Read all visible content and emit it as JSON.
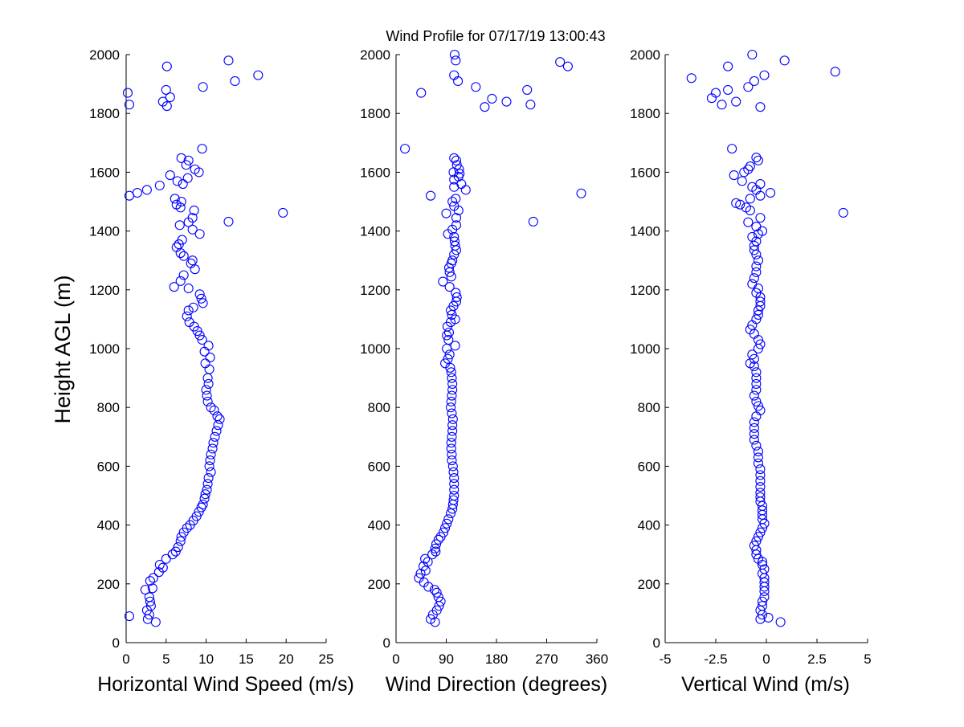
{
  "figure_title": "Wind Profile for  07/17/19 13:00:43",
  "marker_color": "#0000ff",
  "chart_data": [
    {
      "type": "scatter",
      "xlabel": "Horizontal Wind Speed (m/s)",
      "ylabel": "Height AGL (m)",
      "xlim": [
        0,
        25
      ],
      "ylim": [
        0,
        2000
      ],
      "xticks": [
        0,
        5,
        10,
        15,
        20,
        25
      ],
      "yticks": [
        0,
        200,
        400,
        600,
        800,
        1000,
        1200,
        1400,
        1600,
        1800,
        2000
      ],
      "grid": false,
      "points": [
        [
          0.4,
          90
        ],
        [
          3.7,
          70
        ],
        [
          2.7,
          80
        ],
        [
          2.9,
          95
        ],
        [
          2.6,
          110
        ],
        [
          3.1,
          125
        ],
        [
          3.0,
          140
        ],
        [
          2.9,
          155
        ],
        [
          2.4,
          180
        ],
        [
          3.3,
          185
        ],
        [
          3.0,
          210
        ],
        [
          3.4,
          220
        ],
        [
          4.1,
          240
        ],
        [
          4.6,
          255
        ],
        [
          4.2,
          265
        ],
        [
          5.0,
          285
        ],
        [
          5.8,
          300
        ],
        [
          6.2,
          310
        ],
        [
          6.5,
          325
        ],
        [
          6.8,
          345
        ],
        [
          6.9,
          360
        ],
        [
          7.2,
          375
        ],
        [
          7.6,
          390
        ],
        [
          8.0,
          400
        ],
        [
          8.4,
          415
        ],
        [
          8.8,
          430
        ],
        [
          9.1,
          445
        ],
        [
          9.4,
          460
        ],
        [
          9.6,
          470
        ],
        [
          9.8,
          490
        ],
        [
          9.9,
          505
        ],
        [
          10.1,
          520
        ],
        [
          10.2,
          540
        ],
        [
          10.3,
          560
        ],
        [
          10.6,
          580
        ],
        [
          10.4,
          600
        ],
        [
          10.5,
          620
        ],
        [
          10.6,
          640
        ],
        [
          10.8,
          660
        ],
        [
          10.9,
          680
        ],
        [
          11.1,
          700
        ],
        [
          11.3,
          720
        ],
        [
          11.5,
          740
        ],
        [
          11.7,
          760
        ],
        [
          11.4,
          770
        ],
        [
          11.0,
          790
        ],
        [
          10.6,
          800
        ],
        [
          10.2,
          820
        ],
        [
          10.1,
          840
        ],
        [
          10.0,
          860
        ],
        [
          10.3,
          880
        ],
        [
          10.2,
          900
        ],
        [
          10.4,
          930
        ],
        [
          9.9,
          950
        ],
        [
          10.5,
          970
        ],
        [
          9.8,
          990
        ],
        [
          10.3,
          1010
        ],
        [
          9.5,
          1030
        ],
        [
          9.2,
          1045
        ],
        [
          8.9,
          1060
        ],
        [
          8.5,
          1075
        ],
        [
          7.9,
          1090
        ],
        [
          7.6,
          1110
        ],
        [
          7.8,
          1130
        ],
        [
          8.4,
          1140
        ],
        [
          9.6,
          1155
        ],
        [
          9.4,
          1170
        ],
        [
          9.2,
          1185
        ],
        [
          7.8,
          1205
        ],
        [
          6.0,
          1210
        ],
        [
          6.8,
          1230
        ],
        [
          7.2,
          1250
        ],
        [
          8.6,
          1270
        ],
        [
          8.1,
          1290
        ],
        [
          8.3,
          1300
        ],
        [
          7.2,
          1315
        ],
        [
          6.8,
          1325
        ],
        [
          6.3,
          1345
        ],
        [
          6.6,
          1355
        ],
        [
          7.0,
          1370
        ],
        [
          9.2,
          1390
        ],
        [
          8.3,
          1405
        ],
        [
          6.7,
          1420
        ],
        [
          7.8,
          1430
        ],
        [
          12.8,
          1432
        ],
        [
          8.3,
          1445
        ],
        [
          19.6,
          1462
        ],
        [
          8.5,
          1470
        ],
        [
          6.8,
          1480
        ],
        [
          6.3,
          1490
        ],
        [
          6.9,
          1500
        ],
        [
          6.1,
          1510
        ],
        [
          0.4,
          1520
        ],
        [
          1.4,
          1530
        ],
        [
          2.6,
          1540
        ],
        [
          4.2,
          1555
        ],
        [
          7.1,
          1560
        ],
        [
          6.4,
          1570
        ],
        [
          7.7,
          1580
        ],
        [
          5.5,
          1590
        ],
        [
          9.1,
          1600
        ],
        [
          8.6,
          1610
        ],
        [
          7.5,
          1625
        ],
        [
          7.8,
          1640
        ],
        [
          6.9,
          1648
        ],
        [
          9.5,
          1680
        ],
        [
          5.1,
          1825
        ],
        [
          0.4,
          1830
        ],
        [
          4.6,
          1840
        ],
        [
          5.5,
          1855
        ],
        [
          0.2,
          1870
        ],
        [
          5.0,
          1880
        ],
        [
          9.6,
          1890
        ],
        [
          13.6,
          1910
        ],
        [
          16.5,
          1930
        ],
        [
          5.1,
          1960
        ],
        [
          12.8,
          1980
        ]
      ]
    },
    {
      "type": "scatter",
      "xlabel": "Wind Direction (degrees)",
      "xlim": [
        0,
        360
      ],
      "ylim": [
        0,
        2000
      ],
      "xticks": [
        0,
        90,
        180,
        270,
        360
      ],
      "yticks": [
        0,
        200,
        400,
        600,
        800,
        1000,
        1200,
        1400,
        1600,
        1800,
        2000
      ],
      "grid": false,
      "points": [
        [
          70,
          70
        ],
        [
          62,
          80
        ],
        [
          66,
          95
        ],
        [
          73,
          110
        ],
        [
          77,
          125
        ],
        [
          80,
          140
        ],
        [
          76,
          155
        ],
        [
          73,
          170
        ],
        [
          69,
          180
        ],
        [
          58,
          190
        ],
        [
          50,
          205
        ],
        [
          41,
          220
        ],
        [
          44,
          235
        ],
        [
          53,
          245
        ],
        [
          49,
          260
        ],
        [
          57,
          275
        ],
        [
          52,
          285
        ],
        [
          65,
          300
        ],
        [
          71,
          310
        ],
        [
          70,
          320
        ],
        [
          72,
          335
        ],
        [
          76,
          350
        ],
        [
          80,
          360
        ],
        [
          85,
          375
        ],
        [
          88,
          390
        ],
        [
          91,
          405
        ],
        [
          94,
          420
        ],
        [
          98,
          440
        ],
        [
          101,
          455
        ],
        [
          102,
          470
        ],
        [
          103,
          485
        ],
        [
          104,
          500
        ],
        [
          104,
          520
        ],
        [
          104,
          540
        ],
        [
          104,
          560
        ],
        [
          103,
          580
        ],
        [
          102,
          600
        ],
        [
          100,
          620
        ],
        [
          100,
          640
        ],
        [
          99,
          660
        ],
        [
          99,
          680
        ],
        [
          100,
          700
        ],
        [
          101,
          720
        ],
        [
          101,
          740
        ],
        [
          102,
          760
        ],
        [
          100,
          780
        ],
        [
          98,
          800
        ],
        [
          99,
          820
        ],
        [
          100,
          840
        ],
        [
          101,
          860
        ],
        [
          101,
          880
        ],
        [
          100,
          900
        ],
        [
          99,
          920
        ],
        [
          97,
          935
        ],
        [
          88,
          950
        ],
        [
          93,
          965
        ],
        [
          96,
          980
        ],
        [
          91,
          1000
        ],
        [
          106,
          1010
        ],
        [
          94,
          1030
        ],
        [
          91,
          1045
        ],
        [
          95,
          1055
        ],
        [
          92,
          1075
        ],
        [
          98,
          1090
        ],
        [
          106,
          1100
        ],
        [
          100,
          1115
        ],
        [
          98,
          1130
        ],
        [
          103,
          1145
        ],
        [
          108,
          1160
        ],
        [
          109,
          1175
        ],
        [
          107,
          1190
        ],
        [
          96,
          1210
        ],
        [
          84,
          1228
        ],
        [
          99,
          1245
        ],
        [
          96,
          1260
        ],
        [
          95,
          1275
        ],
        [
          99,
          1290
        ],
        [
          101,
          1300
        ],
        [
          104,
          1320
        ],
        [
          108,
          1335
        ],
        [
          106,
          1350
        ],
        [
          105,
          1365
        ],
        [
          104,
          1380
        ],
        [
          93,
          1390
        ],
        [
          101,
          1405
        ],
        [
          108,
          1420
        ],
        [
          246,
          1432
        ],
        [
          108,
          1445
        ],
        [
          90,
          1460
        ],
        [
          112,
          1470
        ],
        [
          104,
          1485
        ],
        [
          101,
          1500
        ],
        [
          107,
          1510
        ],
        [
          62,
          1520
        ],
        [
          332,
          1528
        ],
        [
          125,
          1540
        ],
        [
          104,
          1550
        ],
        [
          117,
          1560
        ],
        [
          104,
          1575
        ],
        [
          112,
          1585
        ],
        [
          114,
          1595
        ],
        [
          103,
          1600
        ],
        [
          113,
          1610
        ],
        [
          109,
          1625
        ],
        [
          108,
          1640
        ],
        [
          104,
          1648
        ],
        [
          16,
          1680
        ],
        [
          159,
          1822
        ],
        [
          241,
          1830
        ],
        [
          45,
          1870
        ],
        [
          198,
          1840
        ],
        [
          172,
          1850
        ],
        [
          235,
          1880
        ],
        [
          143,
          1890
        ],
        [
          111,
          1910
        ],
        [
          104,
          1930
        ],
        [
          308,
          1960
        ],
        [
          294,
          1975
        ],
        [
          107,
          1980
        ],
        [
          105,
          2000
        ]
      ]
    },
    {
      "type": "scatter",
      "xlabel": "Vertical Wind (m/s)",
      "xlim": [
        -5,
        5
      ],
      "ylim": [
        0,
        2000
      ],
      "xticks": [
        -5,
        -2.5,
        0,
        2.5,
        5
      ],
      "xtick_labels": [
        "-5",
        "-2.5",
        "0",
        "2.5",
        "5"
      ],
      "yticks": [
        0,
        200,
        400,
        600,
        800,
        1000,
        1200,
        1400,
        1600,
        1800,
        2000
      ],
      "grid": false,
      "points": [
        [
          0.7,
          70
        ],
        [
          0.1,
          85
        ],
        [
          -0.3,
          80
        ],
        [
          -0.2,
          95
        ],
        [
          -0.3,
          110
        ],
        [
          -0.2,
          125
        ],
        [
          -0.2,
          140
        ],
        [
          -0.1,
          155
        ],
        [
          -0.1,
          175
        ],
        [
          -0.1,
          190
        ],
        [
          -0.1,
          205
        ],
        [
          -0.1,
          220
        ],
        [
          -0.2,
          235
        ],
        [
          -0.1,
          250
        ],
        [
          -0.2,
          265
        ],
        [
          -0.2,
          275
        ],
        [
          -0.4,
          285
        ],
        [
          -0.5,
          300
        ],
        [
          -0.5,
          315
        ],
        [
          -0.6,
          330
        ],
        [
          -0.5,
          345
        ],
        [
          -0.4,
          360
        ],
        [
          -0.3,
          375
        ],
        [
          -0.2,
          390
        ],
        [
          -0.1,
          405
        ],
        [
          -0.2,
          420
        ],
        [
          -0.2,
          435
        ],
        [
          -0.2,
          450
        ],
        [
          -0.2,
          465
        ],
        [
          -0.3,
          480
        ],
        [
          -0.3,
          495
        ],
        [
          -0.3,
          510
        ],
        [
          -0.3,
          530
        ],
        [
          -0.3,
          550
        ],
        [
          -0.3,
          570
        ],
        [
          -0.3,
          590
        ],
        [
          -0.4,
          610
        ],
        [
          -0.4,
          630
        ],
        [
          -0.4,
          650
        ],
        [
          -0.5,
          670
        ],
        [
          -0.6,
          690
        ],
        [
          -0.6,
          710
        ],
        [
          -0.6,
          730
        ],
        [
          -0.6,
          750
        ],
        [
          -0.5,
          770
        ],
        [
          -0.3,
          790
        ],
        [
          -0.4,
          805
        ],
        [
          -0.5,
          820
        ],
        [
          -0.6,
          840
        ],
        [
          -0.5,
          860
        ],
        [
          -0.5,
          880
        ],
        [
          -0.5,
          900
        ],
        [
          -0.5,
          920
        ],
        [
          -0.6,
          940
        ],
        [
          -0.8,
          950
        ],
        [
          -0.6,
          965
        ],
        [
          -0.7,
          980
        ],
        [
          -0.4,
          1000
        ],
        [
          -0.3,
          1015
        ],
        [
          -0.4,
          1030
        ],
        [
          -0.6,
          1050
        ],
        [
          -0.8,
          1065
        ],
        [
          -0.7,
          1080
        ],
        [
          -0.5,
          1100
        ],
        [
          -0.4,
          1115
        ],
        [
          -0.4,
          1130
        ],
        [
          -0.3,
          1145
        ],
        [
          -0.3,
          1160
        ],
        [
          -0.3,
          1175
        ],
        [
          -0.5,
          1190
        ],
        [
          -0.4,
          1205
        ],
        [
          -0.7,
          1220
        ],
        [
          -0.6,
          1240
        ],
        [
          -0.5,
          1260
        ],
        [
          -0.5,
          1280
        ],
        [
          -0.4,
          1300
        ],
        [
          -0.5,
          1320
        ],
        [
          -0.6,
          1335
        ],
        [
          -0.6,
          1350
        ],
        [
          -0.5,
          1365
        ],
        [
          -0.7,
          1380
        ],
        [
          -0.4,
          1390
        ],
        [
          -0.2,
          1400
        ],
        [
          -0.5,
          1415
        ],
        [
          -0.9,
          1430
        ],
        [
          -0.3,
          1445
        ],
        [
          3.8,
          1462
        ],
        [
          -0.8,
          1470
        ],
        [
          -1.0,
          1480
        ],
        [
          -1.3,
          1490
        ],
        [
          -1.5,
          1495
        ],
        [
          -0.8,
          1510
        ],
        [
          0.2,
          1530
        ],
        [
          -0.5,
          1540
        ],
        [
          -0.3,
          1520
        ],
        [
          -0.7,
          1550
        ],
        [
          -0.3,
          1560
        ],
        [
          -1.2,
          1570
        ],
        [
          -1.6,
          1590
        ],
        [
          -1.1,
          1600
        ],
        [
          -0.9,
          1610
        ],
        [
          -0.8,
          1620
        ],
        [
          -0.4,
          1640
        ],
        [
          -0.5,
          1650
        ],
        [
          -1.7,
          1680
        ],
        [
          -0.3,
          1822
        ],
        [
          -2.2,
          1830
        ],
        [
          -1.5,
          1840
        ],
        [
          -2.7,
          1852
        ],
        [
          -2.5,
          1870
        ],
        [
          -1.9,
          1880
        ],
        [
          -0.9,
          1890
        ],
        [
          -0.6,
          1910
        ],
        [
          -3.7,
          1920
        ],
        [
          -0.1,
          1930
        ],
        [
          3.4,
          1942
        ],
        [
          -1.9,
          1960
        ],
        [
          0.9,
          1980
        ],
        [
          -0.7,
          2000
        ]
      ]
    }
  ]
}
